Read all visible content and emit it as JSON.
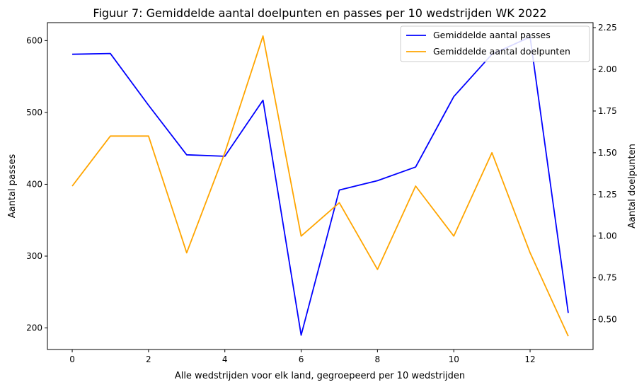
{
  "chart_data": {
    "type": "line",
    "title": "Figuur 7: Gemiddelde aantal doelpunten en passes per 10 wedstrijden WK 2022",
    "xlabel": "Alle wedstrijden voor elk land, gegroepeerd per 10 wedstrijden",
    "ylabel_left": "Aantal passes",
    "ylabel_right": "Aantal doelpunten",
    "x": [
      0,
      1,
      2,
      3,
      4,
      5,
      6,
      7,
      8,
      9,
      10,
      11,
      12,
      13
    ],
    "xlim": [
      -0.65,
      13.65
    ],
    "xticks": [
      0,
      2,
      4,
      6,
      8,
      10,
      12
    ],
    "ylim_left": [
      170,
      625
    ],
    "yticks_left": [
      200,
      300,
      400,
      500,
      600
    ],
    "ylim_right": [
      0.32,
      2.28
    ],
    "yticks_right": [
      "0.50",
      "0.75",
      "1.00",
      "1.25",
      "1.50",
      "1.75",
      "2.00",
      "2.25"
    ],
    "legend_position": "top-right",
    "grid": false,
    "series": [
      {
        "name": "Gemiddelde aantal passes",
        "axis": "left",
        "color": "#0000ff",
        "values": [
          581,
          582,
          510,
          441,
          439,
          517,
          190,
          392,
          405,
          424,
          522,
          581,
          605,
          221
        ]
      },
      {
        "name": "Gemiddelde aantal doelpunten",
        "axis": "right",
        "color": "#ffa500",
        "values": [
          1.3,
          1.6,
          1.6,
          0.9,
          1.5,
          2.2,
          1.0,
          1.2,
          0.8,
          1.3,
          1.0,
          1.5,
          0.9,
          0.4
        ]
      }
    ]
  }
}
